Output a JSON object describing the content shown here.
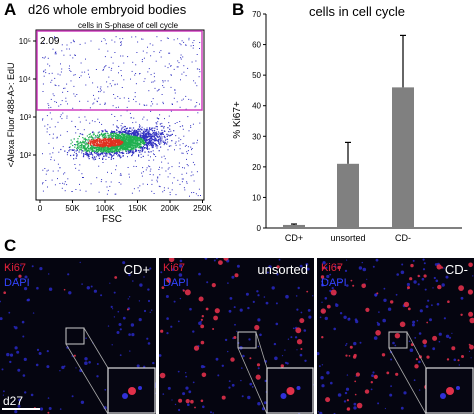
{
  "panels": {
    "a": {
      "letter": "A",
      "title": "d26 whole embryoid bodies",
      "gate_label": "cells in S-phase of cell cycle",
      "gate_percent": "2.09",
      "ylabel": "<Alexa Fluor 488-A>: EdU",
      "xlabel": "FSC",
      "xticks": [
        "0",
        "50K",
        "100K",
        "150K",
        "200K",
        "250K"
      ],
      "yticks": [
        "10²",
        "10³",
        "10⁴",
        "10⁵"
      ],
      "colors": {
        "gate": "#d040c0",
        "sparse": "#3030c0",
        "dense": "#20b050",
        "core": "#e03020"
      }
    },
    "b": {
      "letter": "B"
    },
    "c": {
      "letter": "C",
      "stage": "d27",
      "images": [
        {
          "marker1": "Ki67",
          "marker2": "DAPI",
          "group": "CD+"
        },
        {
          "marker1": "Ki67",
          "marker2": "DAPI",
          "group": "unsorted"
        },
        {
          "marker1": "Ki67",
          "marker2": "DAPI",
          "group": "CD-"
        }
      ]
    }
  },
  "chart_data": {
    "type": "bar",
    "title": "cells in cell cycle",
    "categories": [
      "CD+",
      "unsorted",
      "CD-"
    ],
    "values": [
      1,
      21,
      46
    ],
    "errors": [
      0.3,
      7,
      17
    ],
    "ylabel": "% Ki67+",
    "xlabel": "",
    "ylim": [
      0,
      70
    ],
    "yticks": [
      0,
      10,
      20,
      30,
      40,
      50,
      60,
      70
    ],
    "bar_color": "#808080",
    "grid": false
  }
}
